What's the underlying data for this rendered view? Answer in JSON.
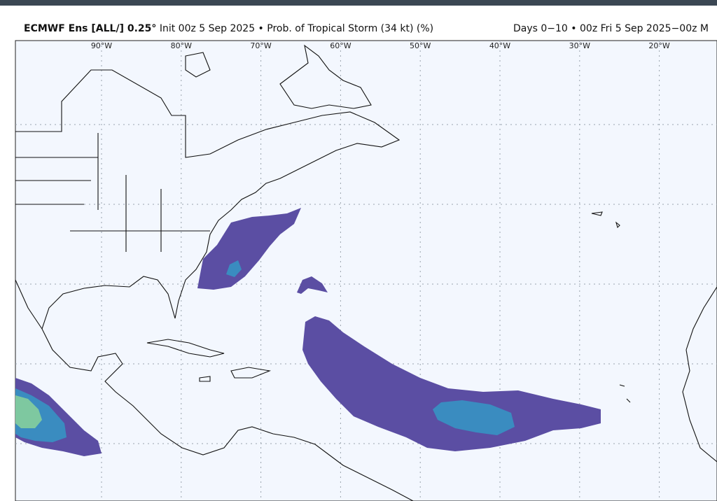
{
  "header": {
    "model": "ECMWF Ens [ALL/] 0.25°",
    "description": "Init 00z 5 Sep 2025 • Prob. of Tropical Storm (34 kt) (%)",
    "valid": "Days 0−10 • 00z Fri 5 Sep 2025−00z M"
  },
  "map": {
    "longitude_labels": [
      "90°W",
      "80°W",
      "70°W",
      "60°W",
      "50°W",
      "40°W",
      "30°W",
      "20°W"
    ]
  }
}
